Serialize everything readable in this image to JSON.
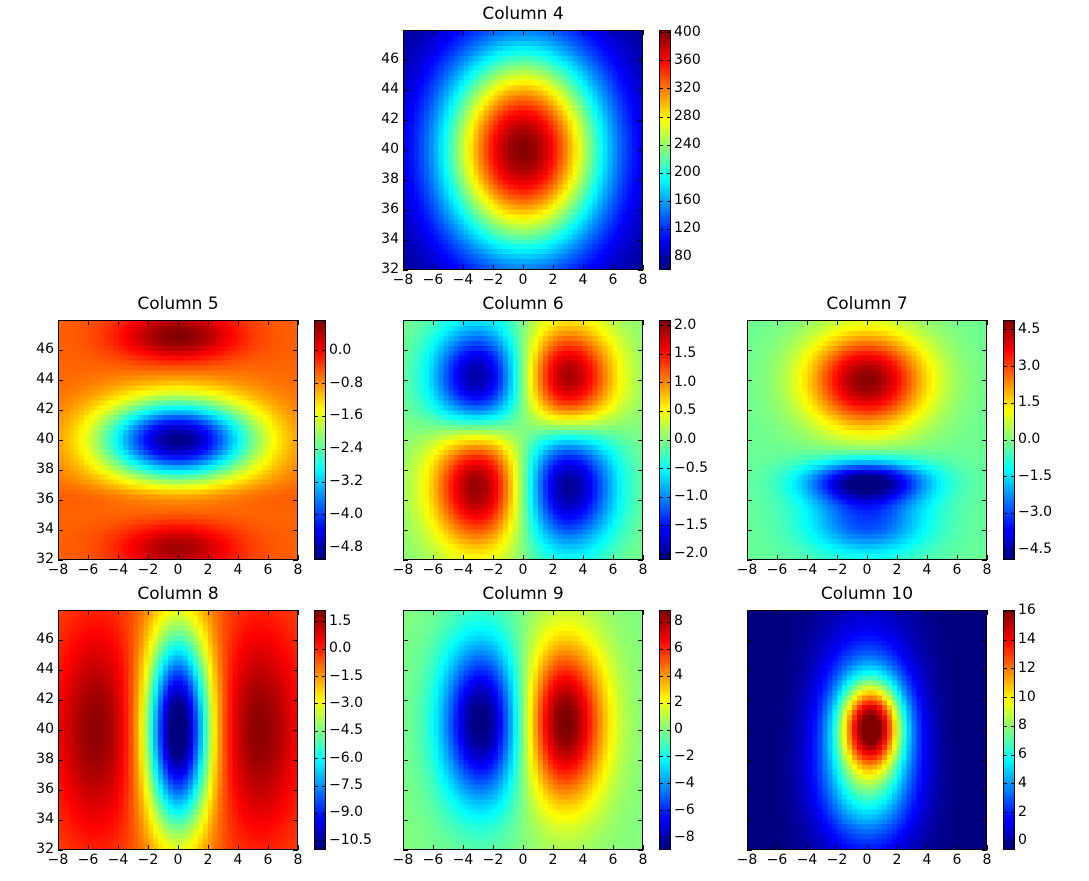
{
  "chart_data": [
    {
      "type": "heatmap",
      "title": "Column 4",
      "xlim": [
        -8,
        8
      ],
      "ylim": [
        32,
        48
      ],
      "xticks": [
        -8,
        -6,
        -4,
        -2,
        0,
        2,
        4,
        6,
        8
      ],
      "yticks": [
        32,
        34,
        36,
        38,
        40,
        42,
        44,
        46
      ],
      "show_yticklabels": true,
      "colorbar": {
        "range": [
          62,
          404
        ],
        "ticks": [
          80,
          120,
          160,
          200,
          240,
          280,
          320,
          360,
          400
        ]
      },
      "model": {
        "base": 62,
        "blobs": [
          [
            0,
            40,
            3.8,
            4.8,
            340
          ]
        ]
      }
    },
    {
      "type": "heatmap",
      "title": "Column 5",
      "xlim": [
        -8,
        8
      ],
      "ylim": [
        32,
        48
      ],
      "xticks": [
        -8,
        -6,
        -4,
        -2,
        0,
        2,
        4,
        6,
        8
      ],
      "yticks": [
        32,
        34,
        36,
        38,
        40,
        42,
        44,
        46
      ],
      "show_yticklabels": true,
      "colorbar": {
        "range": [
          -5.1,
          0.75
        ],
        "ticks": [
          0.0,
          -0.8,
          -1.6,
          -2.4,
          -3.2,
          -4.0,
          -4.8
        ],
        "decimals": 1
      },
      "model": {
        "base": -0.55,
        "blobs": [
          [
            0,
            40,
            3.6,
            1.9,
            -4.5
          ],
          [
            0,
            47,
            2.8,
            1.2,
            1.3
          ],
          [
            0,
            32.7,
            2.8,
            1.2,
            1.1
          ],
          [
            0,
            36.2,
            6,
            0.6,
            0.2
          ]
        ]
      }
    },
    {
      "type": "heatmap",
      "title": "Column 6",
      "xlim": [
        -8,
        8
      ],
      "ylim": [
        32,
        48
      ],
      "xticks": [
        -8,
        -6,
        -4,
        -2,
        0,
        2,
        4,
        6,
        8
      ],
      "yticks": [
        32,
        34,
        36,
        38,
        40,
        42,
        44,
        46
      ],
      "show_yticklabels": false,
      "colorbar": {
        "range": [
          -2.1,
          2.1
        ],
        "ticks": [
          2.0,
          1.5,
          1.0,
          0.5,
          0.0,
          -0.5,
          -1.0,
          -1.5,
          -2.0
        ],
        "decimals": 1
      },
      "model": {
        "base": 0,
        "blobs": [
          [
            -3,
            44,
            2.2,
            2.6,
            -2.1
          ],
          [
            3,
            44,
            2.2,
            2.6,
            2.1
          ],
          [
            -3,
            37,
            2.2,
            3,
            2.1
          ],
          [
            3,
            37,
            2.2,
            3,
            -2.1
          ]
        ]
      }
    },
    {
      "type": "heatmap",
      "title": "Column 7",
      "xlim": [
        -8,
        8
      ],
      "ylim": [
        32,
        48
      ],
      "xticks": [
        -8,
        -6,
        -4,
        -2,
        0,
        2,
        4,
        6,
        8
      ],
      "yticks": [
        32,
        34,
        36,
        38,
        40,
        42,
        44,
        46
      ],
      "show_yticklabels": false,
      "colorbar": {
        "range": [
          -4.9,
          4.9
        ],
        "ticks": [
          4.5,
          3.0,
          1.5,
          0.0,
          -1.5,
          -3.0,
          -4.5
        ],
        "decimals": 1
      },
      "model": {
        "base": -0.2,
        "blobs": [
          [
            0,
            44,
            2.8,
            2.3,
            5.0
          ],
          [
            0,
            37.2,
            2.8,
            1.0,
            -4.5
          ],
          [
            0,
            34.5,
            2.8,
            1.6,
            -2.8
          ]
        ]
      }
    },
    {
      "type": "heatmap",
      "title": "Column 8",
      "xlim": [
        -8,
        8
      ],
      "ylim": [
        32,
        48
      ],
      "xticks": [
        -8,
        -6,
        -4,
        -2,
        0,
        2,
        4,
        6,
        8
      ],
      "yticks": [
        32,
        34,
        36,
        38,
        40,
        42,
        44,
        46
      ],
      "show_yticklabels": true,
      "colorbar": {
        "range": [
          -11,
          2.15
        ],
        "ticks": [
          1.5,
          0.0,
          -1.5,
          -3.0,
          -4.5,
          -6.0,
          -7.5,
          -9.0,
          -10.5
        ],
        "decimals": 1
      },
      "model": {
        "base": -0.6,
        "blobs": [
          [
            -5.5,
            40,
            2,
            5,
            2.6
          ],
          [
            5.5,
            40,
            2,
            5,
            2.6
          ],
          [
            0,
            40,
            1.5,
            4.6,
            -11.2
          ]
        ]
      }
    },
    {
      "type": "heatmap",
      "title": "Column 9",
      "xlim": [
        -8,
        8
      ],
      "ylim": [
        32,
        48
      ],
      "xticks": [
        -8,
        -6,
        -4,
        -2,
        0,
        2,
        4,
        6,
        8
      ],
      "yticks": [
        32,
        34,
        36,
        38,
        40,
        42,
        44,
        46
      ],
      "show_yticklabels": false,
      "colorbar": {
        "range": [
          -8.9,
          8.9
        ],
        "ticks": [
          8,
          6,
          4,
          2,
          0,
          -2,
          -4,
          -6,
          -8
        ]
      },
      "model": {
        "base": 0,
        "blobs": [
          [
            2.8,
            40.5,
            1.9,
            3.8,
            9.2
          ],
          [
            -2.8,
            40.5,
            1.9,
            3.8,
            -9.2
          ]
        ]
      }
    },
    {
      "type": "heatmap",
      "title": "Column 10",
      "xlim": [
        -8,
        8
      ],
      "ylim": [
        32,
        48
      ],
      "xticks": [
        -8,
        -6,
        -4,
        -2,
        0,
        2,
        4,
        6,
        8
      ],
      "yticks": [
        32,
        34,
        36,
        38,
        40,
        42,
        44,
        46
      ],
      "show_yticklabels": false,
      "colorbar": {
        "range": [
          -0.6,
          16.1
        ],
        "ticks": [
          16,
          14,
          12,
          10,
          8,
          6,
          4,
          2,
          0
        ]
      },
      "model": {
        "base": -0.5,
        "blobs": [
          [
            0.3,
            40.3,
            1.4,
            2.0,
            11
          ],
          [
            0,
            39.5,
            2.4,
            4.6,
            6.5
          ],
          [
            0,
            36,
            2.2,
            2.5,
            2.5
          ],
          [
            -5,
            40,
            3,
            6,
            -0.4
          ],
          [
            5,
            40,
            3,
            6,
            -0.4
          ]
        ]
      }
    }
  ]
}
